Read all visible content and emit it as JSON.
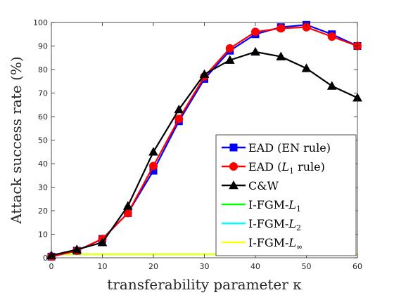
{
  "chart_data": {
    "type": "line",
    "xlabel": "transferability parameter κ",
    "ylabel": "Attack success rate (%)",
    "xlim": [
      0,
      60
    ],
    "ylim": [
      0,
      100
    ],
    "xticks": [
      0,
      10,
      20,
      30,
      40,
      50,
      60
    ],
    "yticks": [
      0,
      10,
      20,
      30,
      40,
      50,
      60,
      70,
      80,
      90,
      100
    ],
    "grid": false,
    "legend_position": "bottom-right",
    "x": [
      0,
      5,
      10,
      15,
      20,
      25,
      30,
      35,
      40,
      45,
      50,
      55,
      60
    ],
    "series": [
      {
        "name": "EAD (EN rule)",
        "color": "#0000ff",
        "marker": "square",
        "values": [
          0.5,
          3,
          8,
          19,
          37,
          58,
          76,
          88,
          95,
          98,
          99,
          95,
          90
        ]
      },
      {
        "name": "EAD (L1 rule)",
        "legend_parts": [
          "EAD (",
          "L",
          "1",
          " rule)"
        ],
        "color": "#ff0000",
        "marker": "circle",
        "values": [
          0.5,
          3,
          8,
          19,
          39,
          59,
          77,
          89,
          96,
          97.5,
          98,
          94,
          90
        ]
      },
      {
        "name": "C&W",
        "color": "#000000",
        "marker": "triangle",
        "values": [
          1,
          3.5,
          6.5,
          22,
          45,
          63,
          78,
          84,
          87.5,
          85.5,
          80.5,
          73,
          68
        ]
      },
      {
        "name": "I-FGM-L1",
        "legend_parts": [
          "I-FGM-",
          "L",
          "1"
        ],
        "color": "#00ff00",
        "marker": "none",
        "values": [
          1.5,
          1.5,
          1.5,
          1.5,
          1.5,
          1.5,
          1.5,
          1.5,
          1.5,
          1.5,
          1.5,
          1.5,
          1.5
        ]
      },
      {
        "name": "I-FGM-L2",
        "legend_parts": [
          "I-FGM-",
          "L",
          "2"
        ],
        "color": "#00ffff",
        "marker": "none",
        "values": [
          1.5,
          1.5,
          1.5,
          1.5,
          1.5,
          1.5,
          1.5,
          1.5,
          1.5,
          1.5,
          1.5,
          1.5,
          1.5
        ]
      },
      {
        "name": "I-FGM-L∞",
        "legend_parts": [
          "I-FGM-",
          "L",
          "∞"
        ],
        "color": "#ffff00",
        "marker": "none",
        "values": [
          1.5,
          1.5,
          1.5,
          1.5,
          1.5,
          1.5,
          1.5,
          1.5,
          1.5,
          1.5,
          1.5,
          1.5,
          1.5
        ]
      }
    ]
  }
}
